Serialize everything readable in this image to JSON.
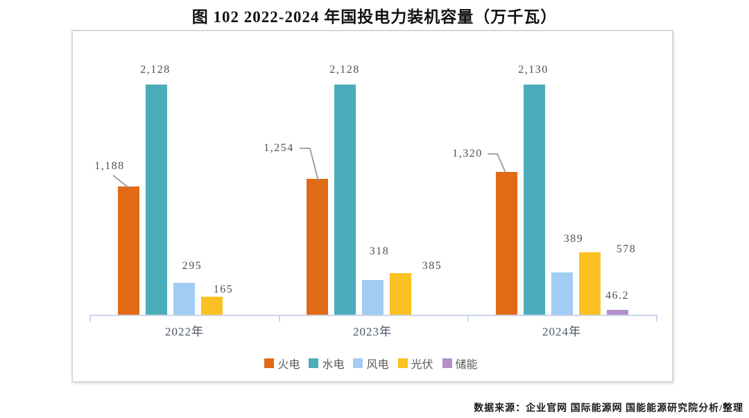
{
  "title": "图 102 2022-2024 年国投电力装机容量（万千瓦）",
  "source_note": "数据来源：企业官网 国际能源网 国能能源研究院分析/整理",
  "colors": {
    "thermal": "#e16a15",
    "hydro": "#49aeb9",
    "wind": "#a2ccf3",
    "solar": "#fbc021",
    "storage": "#b28fcb",
    "axis": "#ccd5ea",
    "leader_line": "#999999"
  },
  "chart_data": {
    "type": "bar",
    "title": "图 102 2022-2024 年国投电力装机容量（万千瓦）",
    "categories": [
      "2022年",
      "2023年",
      "2024年"
    ],
    "series": [
      {
        "key": "thermal",
        "name": "火电",
        "color": "#e16a15",
        "values": [
          1188,
          1254,
          1320
        ],
        "labels": [
          "1,188",
          "1,254",
          "1,320"
        ]
      },
      {
        "key": "hydro",
        "name": "水电",
        "color": "#49aeb9",
        "values": [
          2128,
          2128,
          2130
        ],
        "labels": [
          "2,128",
          "2,128",
          "2,130"
        ]
      },
      {
        "key": "wind",
        "name": "风电",
        "color": "#a2ccf3",
        "values": [
          295,
          318,
          389
        ],
        "labels": [
          "295",
          "318",
          "389"
        ]
      },
      {
        "key": "solar",
        "name": "光伏",
        "color": "#fbc021",
        "values": [
          165,
          385,
          578
        ],
        "labels": [
          "165",
          "385",
          "578"
        ]
      },
      {
        "key": "storage",
        "name": "储能",
        "color": "#b28fcb",
        "values": [
          null,
          null,
          46.2
        ],
        "labels": [
          null,
          null,
          "46.2"
        ]
      }
    ],
    "xlabel": "",
    "ylabel": "",
    "unit": "万千瓦",
    "ylim": [
      0,
      2400
    ],
    "grid": false,
    "y_axis_visible": false,
    "legend_position": "bottom",
    "value_labels": true
  }
}
